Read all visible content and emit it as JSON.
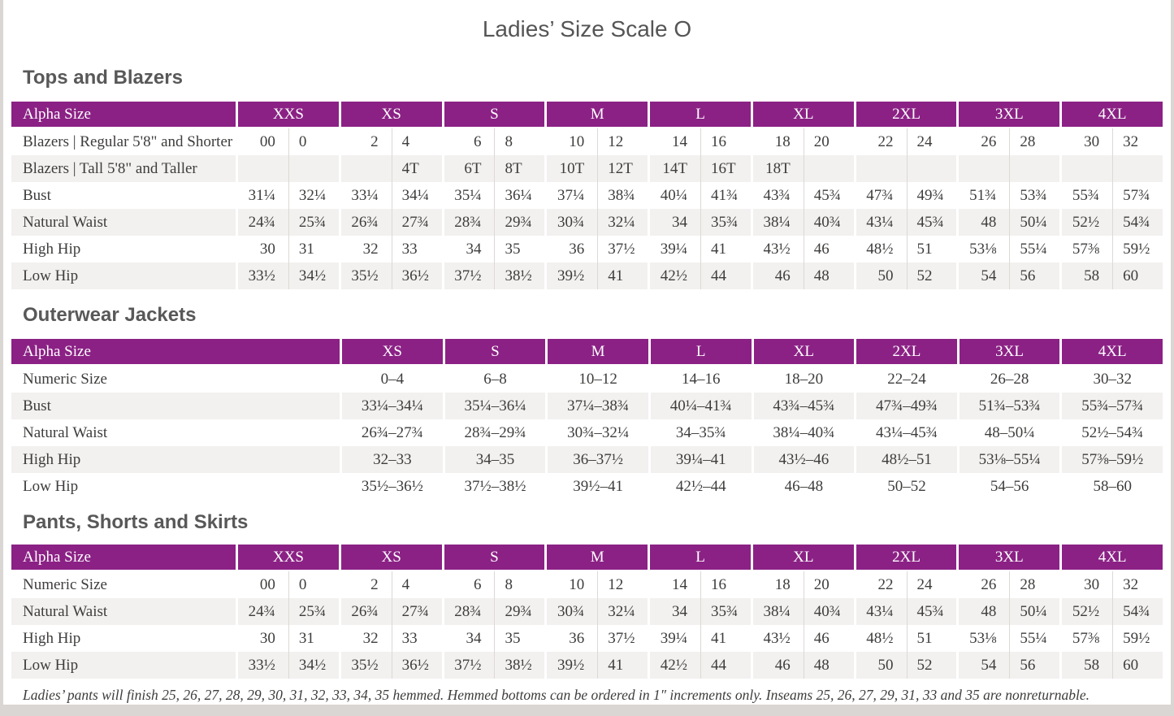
{
  "page_title": "Ladies’ Size Scale O",
  "colors": {
    "accent_purple": "#8b2185",
    "stripe_gray": "#f2f1ef",
    "text_dark": "#3e3d3c",
    "heading_gray": "#585858",
    "page_edge_gray": "#d9d6d3"
  },
  "sections": [
    {
      "heading": "Tops and Blazers",
      "type": "split",
      "header_label": "Alpha Size",
      "sizes": [
        "XXS",
        "XS",
        "S",
        "M",
        "L",
        "XL",
        "2XL",
        "3XL",
        "4XL"
      ],
      "rows": [
        {
          "label": "Blazers | Regular 5'8\" and Shorter",
          "cells": [
            [
              "00",
              "0"
            ],
            [
              "2",
              "4"
            ],
            [
              "6",
              "8"
            ],
            [
              "10",
              "12"
            ],
            [
              "14",
              "16"
            ],
            [
              "18",
              "20"
            ],
            [
              "22",
              "24"
            ],
            [
              "26",
              "28"
            ],
            [
              "30",
              "32"
            ]
          ]
        },
        {
          "label": "Blazers | Tall 5'8\" and Taller",
          "cells": [
            [
              "",
              ""
            ],
            [
              "",
              "4T"
            ],
            [
              "6T",
              "8T"
            ],
            [
              "10T",
              "12T"
            ],
            [
              "14T",
              "16T"
            ],
            [
              "18T",
              ""
            ],
            [
              "",
              ""
            ],
            [
              "",
              ""
            ],
            [
              "",
              ""
            ]
          ]
        },
        {
          "label": "Bust",
          "cells": [
            [
              "31¼",
              "32¼"
            ],
            [
              "33¼",
              "34¼"
            ],
            [
              "35¼",
              "36¼"
            ],
            [
              "37¼",
              "38¾"
            ],
            [
              "40¼",
              "41¾"
            ],
            [
              "43¾",
              "45¾"
            ],
            [
              "47¾",
              "49¾"
            ],
            [
              "51¾",
              "53¾"
            ],
            [
              "55¾",
              "57¾"
            ]
          ]
        },
        {
          "label": "Natural Waist",
          "cells": [
            [
              "24¾",
              "25¾"
            ],
            [
              "26¾",
              "27¾"
            ],
            [
              "28¾",
              "29¾"
            ],
            [
              "30¾",
              "32¼"
            ],
            [
              "34",
              "35¾"
            ],
            [
              "38¼",
              "40¾"
            ],
            [
              "43¼",
              "45¾"
            ],
            [
              "48",
              "50¼"
            ],
            [
              "52½",
              "54¾"
            ]
          ]
        },
        {
          "label": "High Hip",
          "cells": [
            [
              "30",
              "31"
            ],
            [
              "32",
              "33"
            ],
            [
              "34",
              "35"
            ],
            [
              "36",
              "37½"
            ],
            [
              "39¼",
              "41"
            ],
            [
              "43½",
              "46"
            ],
            [
              "48½",
              "51"
            ],
            [
              "53⅛",
              "55¼"
            ],
            [
              "57⅜",
              "59½"
            ]
          ]
        },
        {
          "label": "Low Hip",
          "cells": [
            [
              "33½",
              "34½"
            ],
            [
              "35½",
              "36½"
            ],
            [
              "37½",
              "38½"
            ],
            [
              "39½",
              "41"
            ],
            [
              "42½",
              "44"
            ],
            [
              "46",
              "48"
            ],
            [
              "50",
              "52"
            ],
            [
              "54",
              "56"
            ],
            [
              "58",
              "60"
            ]
          ]
        }
      ]
    },
    {
      "heading": "Outerwear Jackets",
      "type": "single",
      "header_label": "Alpha Size",
      "sizes": [
        "XS",
        "S",
        "M",
        "L",
        "XL",
        "2XL",
        "3XL",
        "4XL"
      ],
      "rows": [
        {
          "label": "Numeric Size",
          "cells": [
            "0–4",
            "6–8",
            "10–12",
            "14–16",
            "18–20",
            "22–24",
            "26–28",
            "30–32"
          ]
        },
        {
          "label": "Bust",
          "cells": [
            "33¼–34¼",
            "35¼–36¼",
            "37¼–38¾",
            "40¼–41¾",
            "43¾–45¾",
            "47¾–49¾",
            "51¾–53¾",
            "55¾–57¾"
          ]
        },
        {
          "label": "Natural Waist",
          "cells": [
            "26¾–27¾",
            "28¾–29¾",
            "30¾–32¼",
            "34–35¾",
            "38¼–40¾",
            "43¼–45¾",
            "48–50¼",
            "52½–54¾"
          ]
        },
        {
          "label": "High Hip",
          "cells": [
            "32–33",
            "34–35",
            "36–37½",
            "39¼–41",
            "43½–46",
            "48½–51",
            "53⅛–55¼",
            "57⅜–59½"
          ]
        },
        {
          "label": "Low Hip",
          "cells": [
            "35½–36½",
            "37½–38½",
            "39½–41",
            "42½–44",
            "46–48",
            "50–52",
            "54–56",
            "58–60"
          ]
        }
      ]
    },
    {
      "heading": "Pants, Shorts and Skirts",
      "type": "split",
      "header_label": "Alpha Size",
      "sizes": [
        "XXS",
        "XS",
        "S",
        "M",
        "L",
        "XL",
        "2XL",
        "3XL",
        "4XL"
      ],
      "rows": [
        {
          "label": "Numeric Size",
          "cells": [
            [
              "00",
              "0"
            ],
            [
              "2",
              "4"
            ],
            [
              "6",
              "8"
            ],
            [
              "10",
              "12"
            ],
            [
              "14",
              "16"
            ],
            [
              "18",
              "20"
            ],
            [
              "22",
              "24"
            ],
            [
              "26",
              "28"
            ],
            [
              "30",
              "32"
            ]
          ]
        },
        {
          "label": "Natural Waist",
          "cells": [
            [
              "24¾",
              "25¾"
            ],
            [
              "26¾",
              "27¾"
            ],
            [
              "28¾",
              "29¾"
            ],
            [
              "30¾",
              "32¼"
            ],
            [
              "34",
              "35¾"
            ],
            [
              "38¼",
              "40¾"
            ],
            [
              "43¼",
              "45¾"
            ],
            [
              "48",
              "50¼"
            ],
            [
              "52½",
              "54¾"
            ]
          ]
        },
        {
          "label": "High Hip",
          "cells": [
            [
              "30",
              "31"
            ],
            [
              "32",
              "33"
            ],
            [
              "34",
              "35"
            ],
            [
              "36",
              "37½"
            ],
            [
              "39¼",
              "41"
            ],
            [
              "43½",
              "46"
            ],
            [
              "48½",
              "51"
            ],
            [
              "53⅛",
              "55¼"
            ],
            [
              "57⅜",
              "59½"
            ]
          ]
        },
        {
          "label": "Low Hip",
          "cells": [
            [
              "33½",
              "34½"
            ],
            [
              "35½",
              "36½"
            ],
            [
              "37½",
              "38½"
            ],
            [
              "39½",
              "41"
            ],
            [
              "42½",
              "44"
            ],
            [
              "46",
              "48"
            ],
            [
              "50",
              "52"
            ],
            [
              "54",
              "56"
            ],
            [
              "58",
              "60"
            ]
          ]
        }
      ]
    }
  ],
  "footnote": "Ladies’ pants will finish 25, 26, 27, 28, 29, 30, 31, 32, 33, 34, 35 hemmed. Hemmed bottoms can be ordered in 1″ increments only. Inseams 25, 26, 27, 29, 31, 33 and 35 are nonreturnable."
}
